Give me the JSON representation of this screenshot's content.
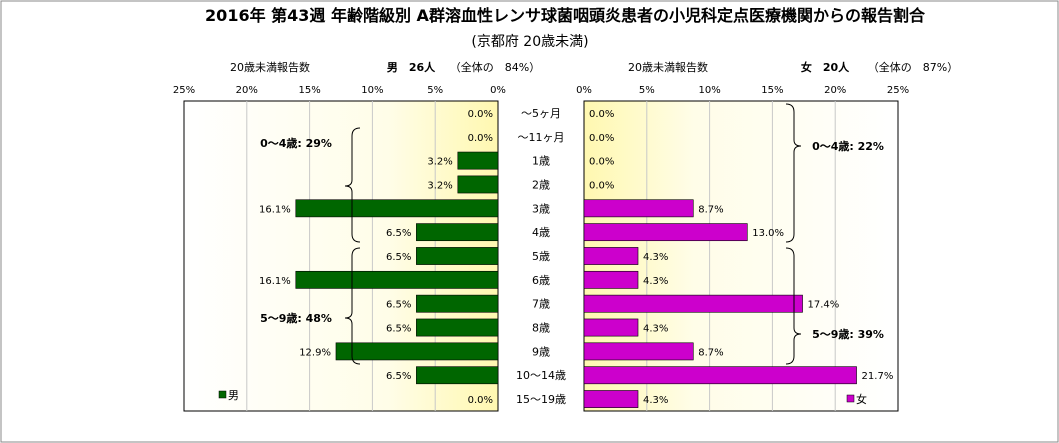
{
  "chart_data": {
    "type": "bar",
    "title": "2016年 第43週 年齢階級別 A群溶血性レンサ球菌咽頭炎患者の小児科定点医療機関からの報告割合",
    "subtitle": "(京都府 20歳未満)",
    "categories": [
      "～5ヶ月",
      "～11ヶ月",
      "1歳",
      "2歳",
      "3歳",
      "4歳",
      "5歳",
      "6歳",
      "7歳",
      "8歳",
      "9歳",
      "10～14歳",
      "15～19歳"
    ],
    "xlim": [
      0,
      25
    ],
    "ticks": [
      "25%",
      "20%",
      "15%",
      "10%",
      "5%",
      "0%"
    ],
    "ticks_right": [
      "0%",
      "5%",
      "10%",
      "15%",
      "20%",
      "25%"
    ],
    "series": [
      {
        "name": "男",
        "color": "#006600",
        "values": [
          0.0,
          0.0,
          3.2,
          3.2,
          16.1,
          6.5,
          6.5,
          16.1,
          6.5,
          6.5,
          12.9,
          6.5,
          0.0
        ],
        "labels": [
          "0.0%",
          "0.0%",
          "3.2%",
          "3.2%",
          "16.1%",
          "6.5%",
          "6.5%",
          "16.1%",
          "6.5%",
          "6.5%",
          "12.9%",
          "6.5%",
          "0.0%"
        ]
      },
      {
        "name": "女",
        "color": "#cc00cc",
        "values": [
          0.0,
          0.0,
          0.0,
          0.0,
          8.7,
          13.0,
          4.3,
          4.3,
          17.4,
          4.3,
          8.7,
          21.7,
          4.3
        ],
        "labels": [
          "0.0%",
          "0.0%",
          "0.0%",
          "0.0%",
          "8.7%",
          "13.0%",
          "4.3%",
          "4.3%",
          "17.4%",
          "4.3%",
          "8.7%",
          "21.7%",
          "4.3%"
        ]
      }
    ],
    "header_left": {
      "label": "20歳未満報告数",
      "count": "男　26人",
      "share": "（全体の　84%）"
    },
    "header_right": {
      "label": "20歳未満報告数",
      "count": "女　20人",
      "share": "（全体の　87%）"
    },
    "groups": {
      "left_0_4": "0～4歳: 29%",
      "left_5_9": "5～9歳: 48%",
      "right_0_4": "0～4歳: 22%",
      "right_5_9": "5～9歳: 39%"
    },
    "legend": [
      "男",
      "女"
    ],
    "grid": true
  }
}
